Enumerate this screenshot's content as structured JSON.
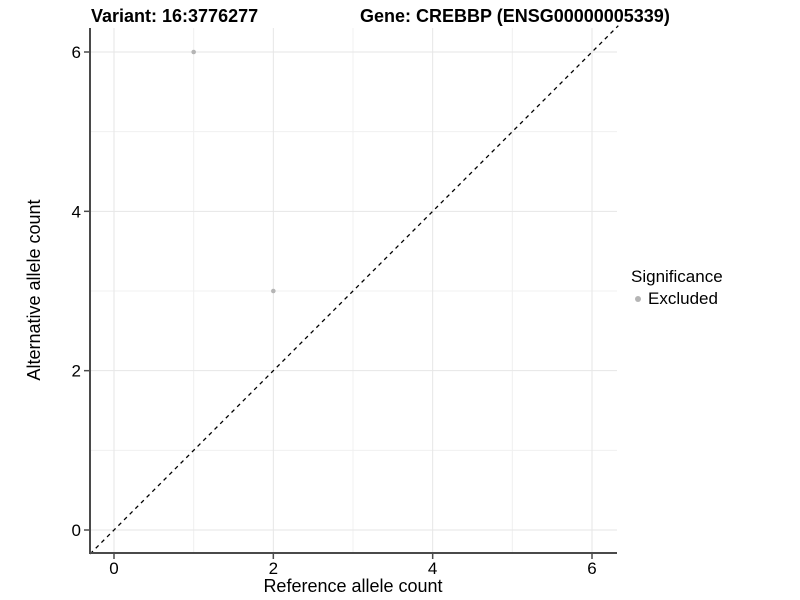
{
  "titles": {
    "variant": "Variant: 16:3776277",
    "gene": "Gene: CREBBP (ENSG00000005339)"
  },
  "chart_data": {
    "type": "scatter",
    "xlabel": "Reference allele count",
    "ylabel": "Alternative allele count",
    "xlim": [
      -0.3,
      6.33
    ],
    "ylim": [
      -0.3,
      6.33
    ],
    "x_major_ticks": [
      0,
      2,
      4,
      6
    ],
    "y_major_ticks": [
      0,
      2,
      4,
      6
    ],
    "x_minor_ticks": [
      1,
      3,
      5
    ],
    "y_minor_ticks": [
      1,
      3,
      5
    ],
    "grid": true,
    "identity_line": {
      "type": "y=x",
      "style": "dashed",
      "color": "#000000"
    },
    "series": [
      {
        "name": "Excluded",
        "color": "#b5b5b5",
        "points": [
          {
            "x": 1,
            "y": 6
          },
          {
            "x": 2,
            "y": 3
          }
        ]
      }
    ],
    "legend": {
      "title": "Significance",
      "position": "right",
      "entries": [
        {
          "label": "Excluded",
          "color": "#b5b5b5"
        }
      ]
    },
    "style": {
      "grid_major_color": "#e6e6e6",
      "grid_minor_color": "#f0f0f0",
      "axis_line_color": "#4a4a4a",
      "tick_text_color": "#000000",
      "point_radius": 2.3
    }
  }
}
